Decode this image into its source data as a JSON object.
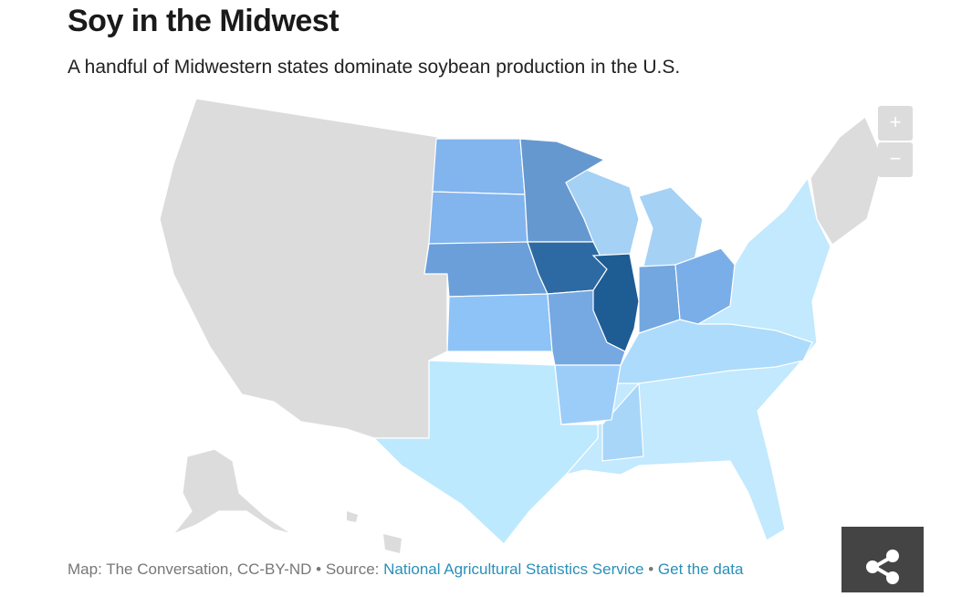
{
  "header": {
    "title": "Soy in the Midwest",
    "subtitle": "A handful of Midwestern states dominate soybean production in the U.S."
  },
  "zoom": {
    "in": "+",
    "out": "−"
  },
  "footer": {
    "credit": "Map: The Conversation, CC-BY-ND",
    "separator": "•",
    "source_label": "Source:",
    "source_link": "National Agricultural Statistics Service",
    "data_link": "Get the data"
  }
}
